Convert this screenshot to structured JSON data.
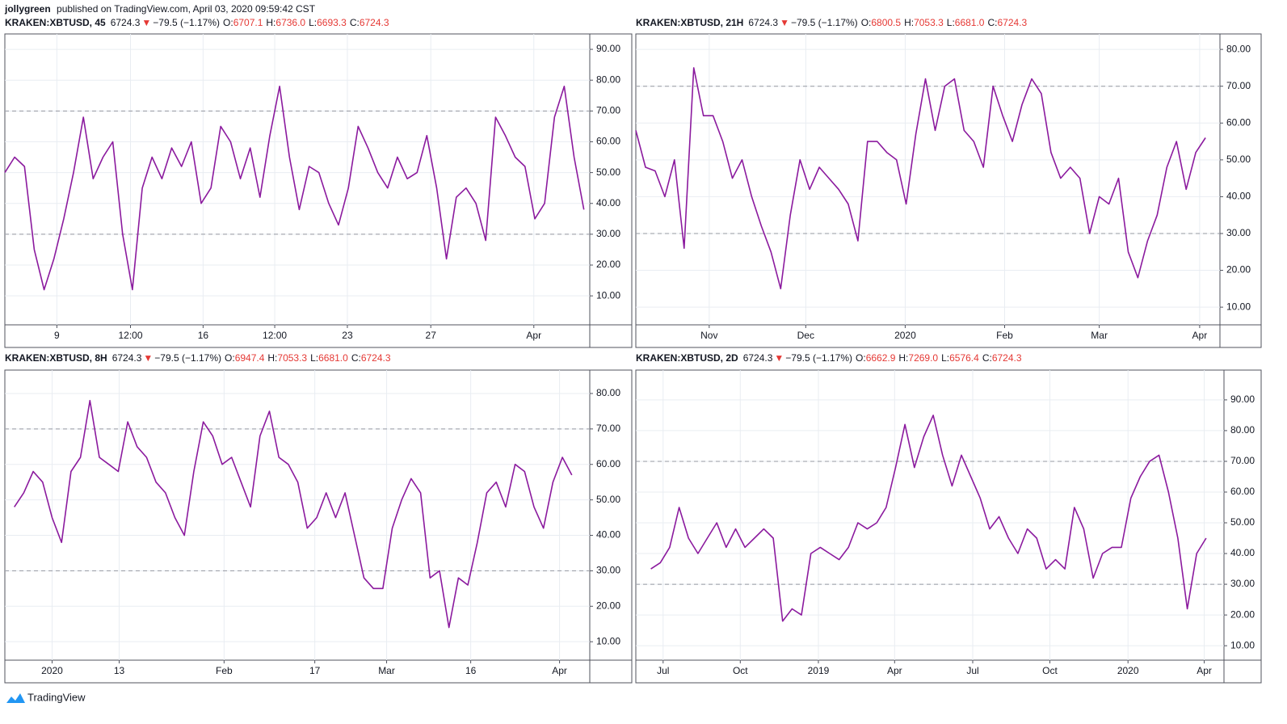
{
  "header": {
    "author": "jollygreen",
    "published": "published on TradingView.com, April 03, 2020 09:59:42 CST"
  },
  "footer": {
    "brand": "TradingView"
  },
  "chart_data": [
    {
      "type": "line",
      "title": "KRAKEN:XBTUSD, 45",
      "last": "6724.3",
      "arrow": "▼",
      "change": "−79.5 (−1.17%)",
      "ohlc": [
        {
          "label": "O:",
          "value": "6707.1"
        },
        {
          "label": "H:",
          "value": "6736.0"
        },
        {
          "label": "L:",
          "value": "6693.3"
        },
        {
          "label": "C:",
          "value": "6724.3"
        }
      ],
      "color": "#8b1a9e",
      "grid": true,
      "hlines": [
        30,
        70
      ],
      "xlim": [
        0,
        59.6
      ],
      "ylim": [
        0.6,
        95
      ],
      "xticks": [
        {
          "value": 5.3,
          "label": "9"
        },
        {
          "value": 12.8,
          "label": "12:00"
        },
        {
          "value": 20.2,
          "label": "16"
        },
        {
          "value": 27.5,
          "label": "12:00"
        },
        {
          "value": 34.9,
          "label": "23"
        },
        {
          "value": 43.4,
          "label": "27"
        },
        {
          "value": 53.9,
          "label": "Apr"
        }
      ],
      "yticks": [
        {
          "value": 90,
          "label": "90.00"
        },
        {
          "value": 80,
          "label": "80.00"
        },
        {
          "value": 70,
          "label": "70.00"
        },
        {
          "value": 60,
          "label": "60.00"
        },
        {
          "value": 50,
          "label": "50.00"
        },
        {
          "value": 40,
          "label": "40.00"
        },
        {
          "value": 30,
          "label": "30.00"
        },
        {
          "value": 20,
          "label": "20.00"
        },
        {
          "value": 10,
          "label": "10.00"
        }
      ],
      "values": [
        50,
        55,
        52,
        25,
        12,
        22,
        35,
        50,
        68,
        48,
        55,
        60,
        30,
        12,
        45,
        55,
        48,
        58,
        52,
        60,
        40,
        45,
        65,
        60,
        48,
        58,
        42,
        62,
        78,
        55,
        38,
        52,
        50,
        40,
        33,
        45,
        65,
        58,
        50,
        45,
        55,
        48,
        50,
        62,
        45,
        22,
        42,
        45,
        40,
        28,
        68,
        62,
        55,
        52,
        35,
        40,
        68,
        78,
        55,
        38
      ]
    },
    {
      "type": "line",
      "title": "KRAKEN:XBTUSD, 21H",
      "last": "6724.3",
      "arrow": "▼",
      "change": "−79.5 (−1.17%)",
      "ohlc": [
        {
          "label": "O:",
          "value": "6800.5"
        },
        {
          "label": "H:",
          "value": "7053.3"
        },
        {
          "label": "L:",
          "value": "6681.0"
        },
        {
          "label": "C:",
          "value": "6724.3"
        }
      ],
      "color": "#8b1a9e",
      "grid": true,
      "hlines": [
        30,
        70
      ],
      "xlim": [
        0,
        60.5
      ],
      "ylim": [
        5.2,
        84.2
      ],
      "xticks": [
        {
          "value": 7.6,
          "label": "Nov"
        },
        {
          "value": 17.6,
          "label": "Dec"
        },
        {
          "value": 27.9,
          "label": "2020"
        },
        {
          "value": 38.2,
          "label": "Feb"
        },
        {
          "value": 48.0,
          "label": "Mar"
        },
        {
          "value": 58.4,
          "label": "Apr"
        }
      ],
      "yticks": [
        {
          "value": 80,
          "label": "80.00"
        },
        {
          "value": 70,
          "label": "70.00"
        },
        {
          "value": 60,
          "label": "60.00"
        },
        {
          "value": 50,
          "label": "50.00"
        },
        {
          "value": 40,
          "label": "40.00"
        },
        {
          "value": 30,
          "label": "30.00"
        },
        {
          "value": 20,
          "label": "20.00"
        },
        {
          "value": 10,
          "label": "10.00"
        }
      ],
      "values": [
        58,
        48,
        47,
        40,
        50,
        26,
        75,
        62,
        62,
        55,
        45,
        50,
        40,
        32,
        25,
        15,
        35,
        50,
        42,
        48,
        45,
        42,
        38,
        28,
        55,
        55,
        52,
        50,
        38,
        57,
        72,
        58,
        70,
        72,
        58,
        55,
        48,
        70,
        62,
        55,
        65,
        72,
        68,
        52,
        45,
        48,
        45,
        30,
        40,
        38,
        45,
        25,
        18,
        28,
        35,
        48,
        55,
        42,
        52,
        56
      ]
    },
    {
      "type": "line",
      "title": "KRAKEN:XBTUSD, 8H",
      "last": "6724.3",
      "arrow": "▼",
      "change": "−79.5 (−1.17%)",
      "ohlc": [
        {
          "label": "O:",
          "value": "6947.4"
        },
        {
          "label": "H:",
          "value": "7053.3"
        },
        {
          "label": "L:",
          "value": "6681.0"
        },
        {
          "label": "C:",
          "value": "6724.3"
        }
      ],
      "color": "#8b1a9e",
      "grid": true,
      "hlines": [
        30,
        70
      ],
      "xlim": [
        -1.0,
        60.9
      ],
      "ylim": [
        4.8,
        86.6
      ],
      "xticks": [
        {
          "value": 4.0,
          "label": "2020"
        },
        {
          "value": 11.1,
          "label": "13"
        },
        {
          "value": 22.2,
          "label": "Feb"
        },
        {
          "value": 31.8,
          "label": "17"
        },
        {
          "value": 39.4,
          "label": "Mar"
        },
        {
          "value": 48.3,
          "label": "16"
        },
        {
          "value": 57.7,
          "label": "Apr"
        }
      ],
      "yticks": [
        {
          "value": 80,
          "label": "80.00"
        },
        {
          "value": 70,
          "label": "70.00"
        },
        {
          "value": 60,
          "label": "60.00"
        },
        {
          "value": 50,
          "label": "50.00"
        },
        {
          "value": 40,
          "label": "40.00"
        },
        {
          "value": 30,
          "label": "30.00"
        },
        {
          "value": 20,
          "label": "20.00"
        },
        {
          "value": 10,
          "label": "10.00"
        }
      ],
      "values": [
        48,
        52,
        58,
        55,
        45,
        38,
        58,
        62,
        78,
        62,
        60,
        58,
        72,
        65,
        62,
        55,
        52,
        45,
        40,
        58,
        72,
        68,
        60,
        62,
        55,
        48,
        68,
        75,
        62,
        60,
        55,
        42,
        45,
        52,
        45,
        52,
        40,
        28,
        25,
        25,
        42,
        50,
        56,
        52,
        28,
        30,
        14,
        28,
        26,
        38,
        52,
        55,
        48,
        60,
        58,
        48,
        42,
        55,
        62,
        57
      ]
    },
    {
      "type": "line",
      "title": "KRAKEN:XBTUSD, 2D",
      "last": "6724.3",
      "arrow": "▼",
      "change": "−79.5 (−1.17%)",
      "ohlc": [
        {
          "label": "O:",
          "value": "6662.9"
        },
        {
          "label": "H:",
          "value": "7269.0"
        },
        {
          "label": "L:",
          "value": "6576.4"
        },
        {
          "label": "C:",
          "value": "6724.3"
        }
      ],
      "color": "#8b1a9e",
      "grid": true,
      "hlines": [
        30,
        70
      ],
      "xlim": [
        -1.6,
        60.9
      ],
      "ylim": [
        5.3,
        99.7
      ],
      "xticks": [
        {
          "value": 1.3,
          "label": "Jul"
        },
        {
          "value": 9.5,
          "label": "Oct"
        },
        {
          "value": 17.8,
          "label": "2019"
        },
        {
          "value": 25.9,
          "label": "Apr"
        },
        {
          "value": 34.2,
          "label": "Jul"
        },
        {
          "value": 42.4,
          "label": "Oct"
        },
        {
          "value": 50.7,
          "label": "2020"
        },
        {
          "value": 58.8,
          "label": "Apr"
        }
      ],
      "yticks": [
        {
          "value": 90,
          "label": "90.00"
        },
        {
          "value": 80,
          "label": "80.00"
        },
        {
          "value": 70,
          "label": "70.00"
        },
        {
          "value": 60,
          "label": "60.00"
        },
        {
          "value": 50,
          "label": "50.00"
        },
        {
          "value": 40,
          "label": "40.00"
        },
        {
          "value": 30,
          "label": "30.00"
        },
        {
          "value": 20,
          "label": "20.00"
        },
        {
          "value": 10,
          "label": "10.00"
        }
      ],
      "values": [
        35,
        37,
        42,
        55,
        45,
        40,
        45,
        50,
        42,
        48,
        42,
        45,
        48,
        45,
        18,
        22,
        20,
        40,
        42,
        40,
        38,
        42,
        50,
        48,
        50,
        55,
        68,
        82,
        68,
        78,
        85,
        72,
        62,
        72,
        65,
        58,
        48,
        52,
        45,
        40,
        48,
        45,
        35,
        38,
        35,
        55,
        48,
        32,
        40,
        42,
        42,
        58,
        65,
        70,
        72,
        60,
        45,
        22,
        40,
        45
      ]
    }
  ]
}
